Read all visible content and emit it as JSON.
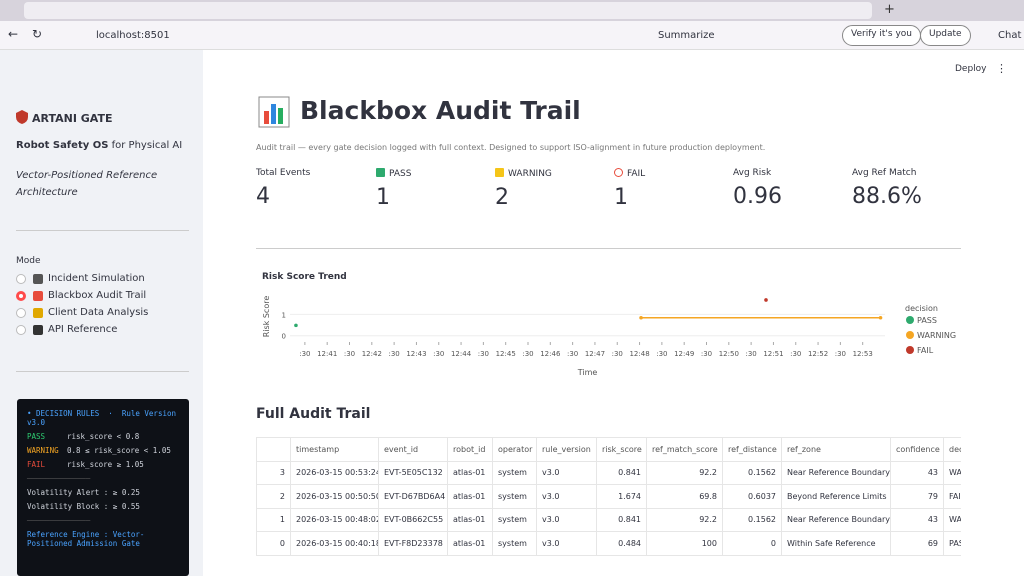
{
  "browser": {
    "url": "localhost:8501",
    "summarize": "Summarize",
    "verify": "Verify it's you",
    "update": "Update",
    "chat": "Chat"
  },
  "app": {
    "deploy": "Deploy"
  },
  "sidebar": {
    "brand": "ARTANI GATE",
    "tagline_bold": "Robot Safety OS",
    "tagline_rest": "for Physical AI",
    "subtitle": "Vector-Positioned Reference Architecture",
    "mode_label": "Mode",
    "modes": [
      "Incident Simulation",
      "Blackbox Audit Trail",
      "Client Data Analysis",
      "API Reference"
    ],
    "rules": {
      "heading": "• DECISION RULES  ·  Rule Version v3.0",
      "pass_label": "PASS",
      "pass_rule": "risk_score < 0.8",
      "warning_label": "WARNING",
      "warning_rule": "0.8 ≤ risk_score < 1.05",
      "fail_label": "FAIL",
      "fail_rule": "risk_score ≥ 1.05",
      "divider": "──────────────",
      "vol_alert": "Volatility Alert : ≥ 0.25",
      "vol_block": "Volatility Block : ≥ 0.55",
      "engine": "Reference Engine : Vector-Positioned Admission Gate"
    }
  },
  "header": {
    "title": "Blackbox Audit Trail",
    "caption": "Audit trail — every gate decision logged with full context. Designed to support ISO-alignment in future production deployment."
  },
  "metrics": [
    {
      "label": "Total Events",
      "value": 4
    },
    {
      "label": "PASS",
      "value": 1
    },
    {
      "label": "WARNING",
      "value": 2
    },
    {
      "label": "FAIL",
      "value": 1
    },
    {
      "label": "Avg Risk",
      "value": 0.96
    },
    {
      "label": "Avg Ref Match",
      "value": "88.6%"
    }
  ],
  "chart_data": {
    "type": "line",
    "title": "Risk Score Trend",
    "x_label": "Time",
    "y_label": "Risk Score",
    "legend_title": "decision",
    "xlim": [
      "12:40:10",
      "12:53:30"
    ],
    "xticks": [
      {
        "value": "12:40:30",
        "label": ":30"
      },
      {
        "value": "12:41:00",
        "label": "12:41"
      },
      {
        "value": "12:41:30",
        "label": ":30"
      },
      {
        "value": "12:42:00",
        "label": "12:42"
      },
      {
        "value": "12:42:30",
        "label": ":30"
      },
      {
        "value": "12:43:00",
        "label": "12:43"
      },
      {
        "value": "12:43:30",
        "label": ":30"
      },
      {
        "value": "12:44:00",
        "label": "12:44"
      },
      {
        "value": "12:44:30",
        "label": ":30"
      },
      {
        "value": "12:45:00",
        "label": "12:45"
      },
      {
        "value": "12:45:30",
        "label": ":30"
      },
      {
        "value": "12:46:00",
        "label": "12:46"
      },
      {
        "value": "12:46:30",
        "label": ":30"
      },
      {
        "value": "12:47:00",
        "label": "12:47"
      },
      {
        "value": "12:47:30",
        "label": ":30"
      },
      {
        "value": "12:48:00",
        "label": "12:48"
      },
      {
        "value": "12:48:30",
        "label": ":30"
      },
      {
        "value": "12:49:00",
        "label": "12:49"
      },
      {
        "value": "12:49:30",
        "label": ":30"
      },
      {
        "value": "12:50:00",
        "label": "12:50"
      },
      {
        "value": "12:50:30",
        "label": ":30"
      },
      {
        "value": "12:51:00",
        "label": "12:51"
      },
      {
        "value": "12:51:30",
        "label": ":30"
      },
      {
        "value": "12:52:00",
        "label": "12:52"
      },
      {
        "value": "12:52:30",
        "label": ":30"
      },
      {
        "value": "12:53:00",
        "label": "12:53"
      }
    ],
    "ylim": [
      -0.2,
      2.0
    ],
    "yticks": [
      0,
      1
    ],
    "series": [
      {
        "name": "PASS",
        "color": "#2eaa6e",
        "x": [
          "12:40:18"
        ],
        "values": [
          0.484
        ]
      },
      {
        "name": "WARNING",
        "color": "#f5a623",
        "x": [
          "12:48:02",
          "12:53:24"
        ],
        "values": [
          0.841,
          0.841
        ]
      },
      {
        "name": "FAIL",
        "color": "#c0392b",
        "x": [
          "12:50:50"
        ],
        "values": [
          1.674
        ]
      }
    ]
  },
  "table": {
    "title": "Full Audit Trail",
    "columns": [
      "",
      "timestamp",
      "event_id",
      "robot_id",
      "operator",
      "rule_version",
      "risk_score",
      "ref_match_score",
      "ref_distance",
      "ref_zone",
      "confidence",
      "decision"
    ],
    "rows": [
      [
        3,
        "2026-03-15 00:53:24",
        "EVT-5E05C132",
        "atlas-01",
        "system",
        "v3.0",
        0.841,
        92.2,
        0.1562,
        "Near Reference Boundary",
        43,
        "WARNING"
      ],
      [
        2,
        "2026-03-15 00:50:50",
        "EVT-D67BD6A4",
        "atlas-01",
        "system",
        "v3.0",
        1.674,
        69.8,
        0.6037,
        "Beyond Reference Limits",
        79,
        "FAIL"
      ],
      [
        1,
        "2026-03-15 00:48:02",
        "EVT-0B662C55",
        "atlas-01",
        "system",
        "v3.0",
        0.841,
        92.2,
        0.1562,
        "Near Reference Boundary",
        43,
        "WARNING"
      ],
      [
        0,
        "2026-03-15 00:40:18",
        "EVT-F8D23378",
        "atlas-01",
        "system",
        "v3.0",
        0.484,
        100,
        0,
        "Within Safe Reference",
        69,
        "PASS"
      ]
    ]
  }
}
